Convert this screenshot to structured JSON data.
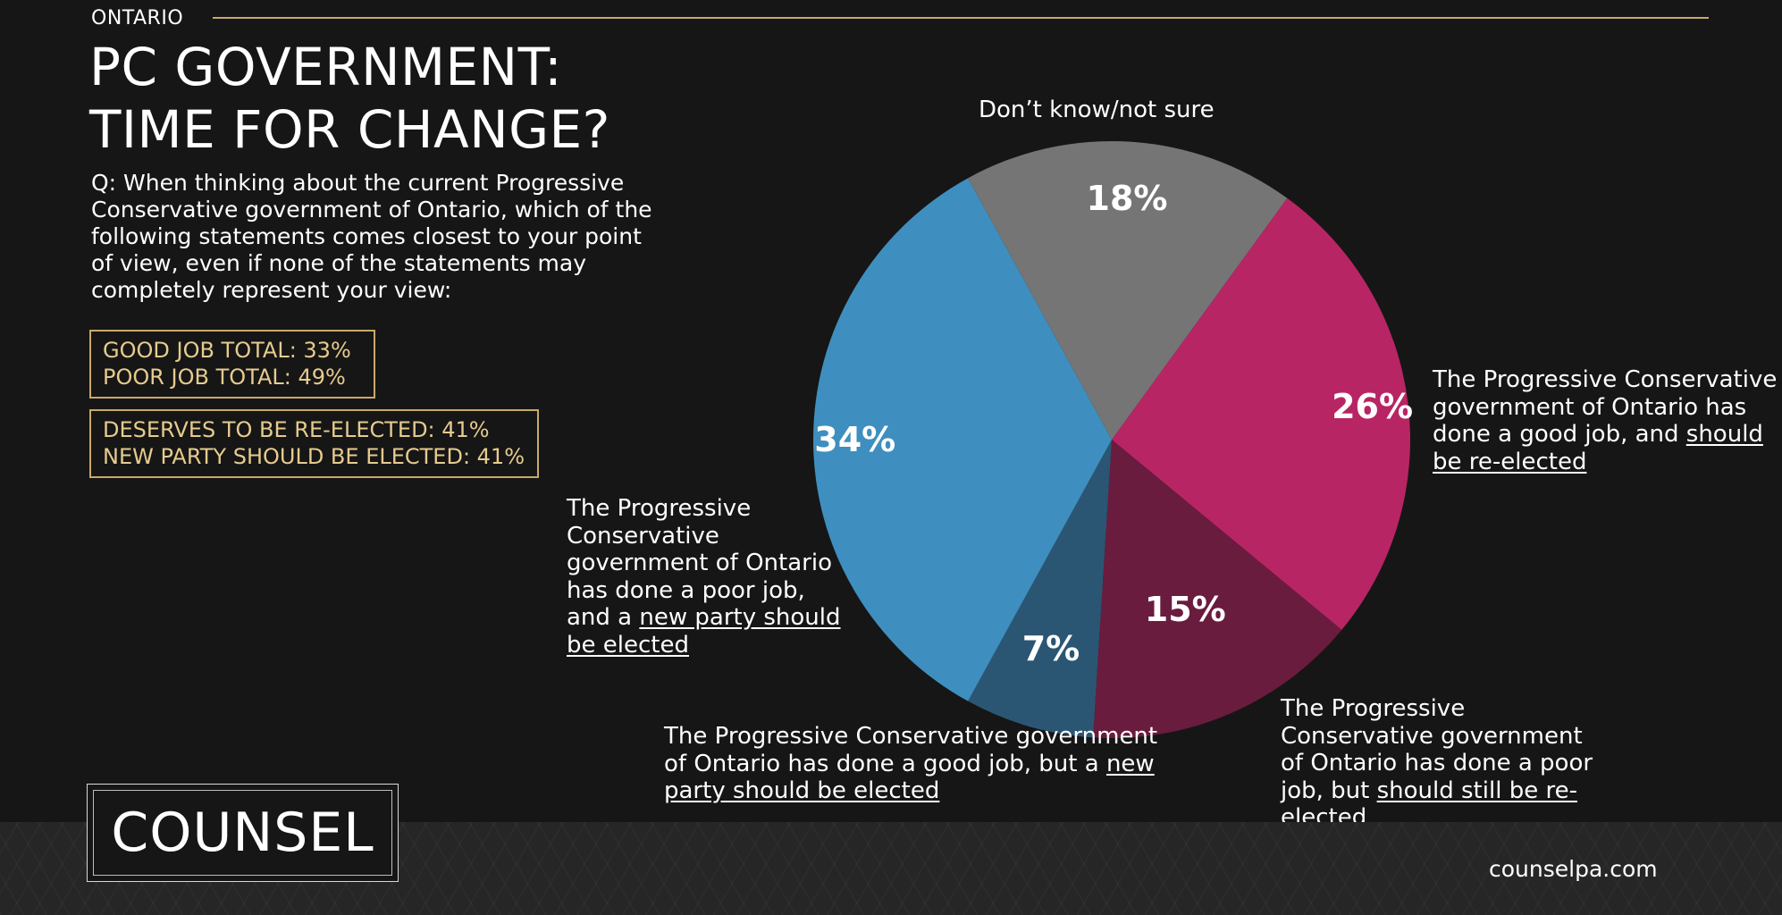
{
  "header": {
    "region": "ONTARIO",
    "title_line1": "PC GOVERNMENT:",
    "title_line2": "TIME FOR CHANGE?",
    "question": "Q: When thinking about the current Progressive Conservative government of Ontario, which of the following statements comes closest to your point of view, even if none of the statements may completely represent your view:"
  },
  "summary": {
    "good_job": "GOOD JOB TOTAL: 33%",
    "poor_job": "POOR JOB TOTAL: 49%",
    "re_elected": "DESERVES TO BE RE-ELECTED: 41%",
    "new_party": "NEW PARTY SHOULD BE ELECTED: 41%"
  },
  "callouts": {
    "dont_know": "Don’t know/not sure",
    "good_reelect": {
      "pre": "The Progressive Conservative government of Ontario has done a good job, and ",
      "u": "should be re-elected"
    },
    "poor_reelect": {
      "pre": "The Progressive Conservative government of Ontario has done a poor job, but ",
      "u": "should still be re-elected"
    },
    "good_new": {
      "pre": "The Progressive Conservative government of Ontario has done a good job, but a ",
      "u": "new party should be elected"
    },
    "poor_new": {
      "pre": "The Progressive Conservative government of Ontario has done a poor job, and a ",
      "u": "new party should be elected"
    }
  },
  "chart_data": {
    "type": "pie",
    "slices": [
      {
        "label": "The Progressive Conservative government of Ontario has done a good job, and should be re-elected",
        "value": 26,
        "display": "26%",
        "color": "#b82564"
      },
      {
        "label": "The Progressive Conservative government of Ontario has done a poor job, but should still be re-elected",
        "value": 15,
        "display": "15%",
        "color": "#6a1c3e"
      },
      {
        "label": "The Progressive Conservative government of Ontario has done a good job, but a new party should be elected",
        "value": 7,
        "display": "7%",
        "color": "#2b5673"
      },
      {
        "label": "The Progressive Conservative government of Ontario has done a poor job, and a new party should be elected",
        "value": 34,
        "display": "34%",
        "color": "#3e8fbf"
      },
      {
        "label": "Don’t know/not sure",
        "value": 18,
        "display": "18%",
        "color": "#757575"
      }
    ]
  },
  "footer": {
    "logo": "COUNSEL",
    "site": "counselpa.com"
  }
}
